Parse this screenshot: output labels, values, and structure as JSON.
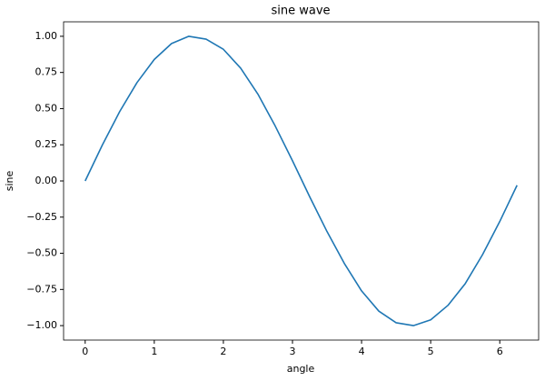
{
  "chart_data": {
    "type": "line",
    "title": "sine wave",
    "x_label": "angle",
    "y_label": "sine",
    "x": [
      0,
      0.25,
      0.5,
      0.75,
      1.0,
      1.25,
      1.5,
      1.75,
      2.0,
      2.25,
      2.5,
      2.75,
      3.0,
      3.25,
      3.5,
      3.75,
      4.0,
      4.25,
      4.5,
      4.75,
      5.0,
      5.25,
      5.5,
      5.75,
      6.0,
      6.25
    ],
    "series": [
      {
        "name": "sine",
        "color": "#1f77b4",
        "values": [
          0,
          0.25,
          0.48,
          0.68,
          0.84,
          0.95,
          1.0,
          0.98,
          0.91,
          0.78,
          0.6,
          0.38,
          0.14,
          -0.11,
          -0.35,
          -0.57,
          -0.76,
          -0.9,
          -0.98,
          -1.0,
          -0.96,
          -0.86,
          -0.71,
          -0.51,
          -0.28,
          -0.03
        ]
      }
    ],
    "xlim": [
      -0.3125,
      6.5625
    ],
    "ylim": [
      -1.1,
      1.1
    ],
    "xticks": [
      0,
      1,
      2,
      3,
      4,
      5,
      6
    ],
    "yticks": [
      {
        "value": -1,
        "label": "−1.00"
      },
      {
        "value": -0.75,
        "label": "−0.75"
      },
      {
        "value": -0.5,
        "label": "−0.50"
      },
      {
        "value": -0.25,
        "label": "−0.25"
      },
      {
        "value": 0,
        "label": "0.00"
      },
      {
        "value": 0.25,
        "label": "0.25"
      },
      {
        "value": 0.5,
        "label": "0.50"
      },
      {
        "value": 0.75,
        "label": "0.75"
      },
      {
        "value": 1,
        "label": "1.00"
      }
    ],
    "grid": false
  }
}
